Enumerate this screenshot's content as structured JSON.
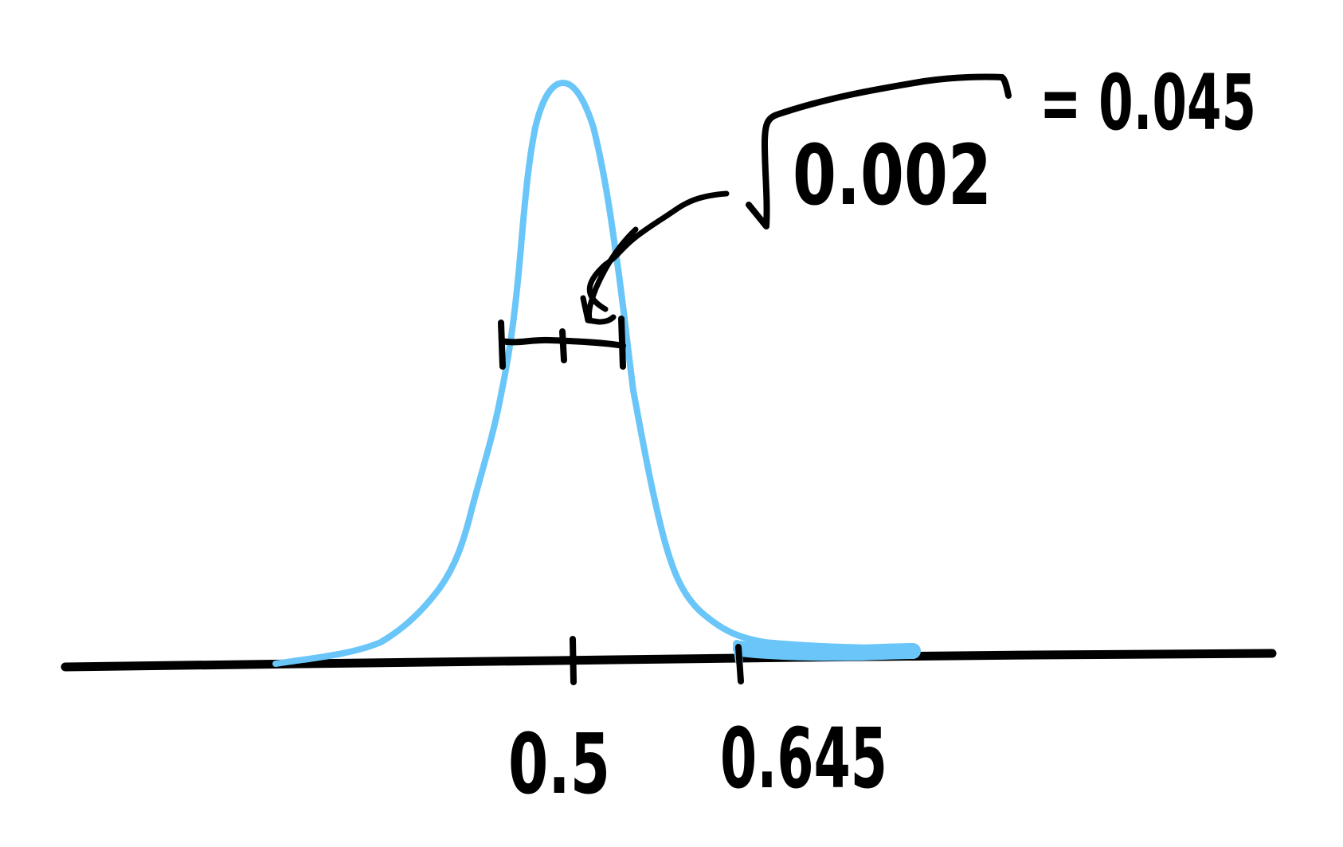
{
  "colors": {
    "ink": "#000000",
    "curve": "#6ac6f8",
    "background": "#ffffff"
  },
  "axis": {
    "tick_labels": [
      "0.5",
      "0.645"
    ]
  },
  "annotation": {
    "radicand": "0.002",
    "result": "= 0.045"
  }
}
